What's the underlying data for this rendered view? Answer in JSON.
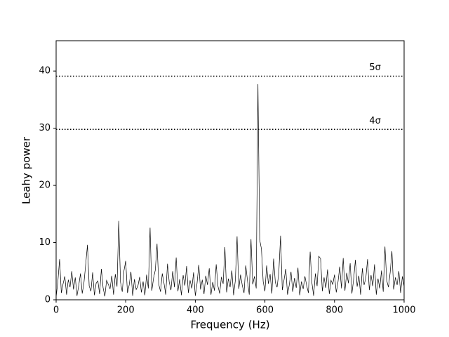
{
  "chart_data": {
    "type": "line",
    "xlabel": "Frequency (Hz)",
    "ylabel": "Leahy power",
    "color": "#000000",
    "xlim": [
      0,
      1000
    ],
    "ylim": [
      0,
      45.3
    ],
    "xticks": [
      0,
      200,
      400,
      600,
      800,
      1000
    ],
    "yticks": [
      0,
      10,
      20,
      30,
      40
    ],
    "thresholds": [
      {
        "value": 39.1,
        "label": "5σ"
      },
      {
        "value": 29.8,
        "label": "4σ"
      }
    ],
    "x": [
      0,
      5,
      10,
      15,
      20,
      25,
      30,
      35,
      40,
      45,
      50,
      55,
      60,
      65,
      70,
      75,
      80,
      85,
      90,
      95,
      100,
      105,
      110,
      115,
      120,
      125,
      130,
      135,
      140,
      145,
      150,
      155,
      160,
      165,
      170,
      175,
      180,
      185,
      190,
      195,
      200,
      205,
      210,
      215,
      220,
      225,
      230,
      235,
      240,
      245,
      250,
      255,
      260,
      265,
      270,
      275,
      280,
      285,
      290,
      295,
      300,
      305,
      310,
      315,
      320,
      325,
      330,
      335,
      340,
      345,
      350,
      355,
      360,
      365,
      370,
      375,
      380,
      385,
      390,
      395,
      400,
      405,
      410,
      415,
      420,
      425,
      430,
      435,
      440,
      445,
      450,
      455,
      460,
      465,
      470,
      475,
      480,
      485,
      490,
      495,
      500,
      505,
      510,
      515,
      520,
      525,
      530,
      535,
      540,
      545,
      550,
      555,
      560,
      565,
      570,
      575,
      580,
      585,
      590,
      595,
      600,
      605,
      610,
      615,
      620,
      625,
      630,
      635,
      640,
      645,
      650,
      655,
      660,
      665,
      670,
      675,
      680,
      685,
      690,
      695,
      700,
      705,
      710,
      715,
      720,
      725,
      730,
      735,
      740,
      745,
      750,
      755,
      760,
      765,
      770,
      775,
      780,
      785,
      790,
      795,
      800,
      805,
      810,
      815,
      820,
      825,
      830,
      835,
      840,
      845,
      850,
      855,
      860,
      865,
      870,
      875,
      880,
      885,
      890,
      895,
      900,
      905,
      910,
      915,
      920,
      925,
      930,
      935,
      940,
      945,
      950,
      955,
      960,
      965,
      970,
      975,
      980,
      985,
      990,
      995,
      1000
    ],
    "values": [
      0.5,
      3.2,
      7.1,
      1.2,
      2.8,
      4.1,
      0.9,
      3.5,
      2.2,
      5.0,
      1.8,
      3.9,
      0.7,
      2.5,
      4.6,
      1.1,
      3.0,
      6.2,
      9.6,
      2.4,
      1.5,
      4.8,
      0.8,
      2.9,
      3.3,
      1.0,
      5.4,
      2.1,
      0.6,
      3.4,
      2.7,
      1.9,
      4.2,
      0.9,
      4.5,
      2.3,
      13.8,
      3.1,
      1.4,
      5.1,
      6.8,
      1.2,
      2.6,
      4.9,
      0.7,
      3.6,
      1.8,
      2.4,
      4.0,
      1.3,
      3.2,
      0.8,
      4.4,
      2.0,
      12.6,
      1.6,
      3.8,
      5.2,
      9.8,
      2.7,
      1.4,
      4.6,
      2.9,
      0.9,
      6.3,
      3.1,
      1.7,
      5.0,
      2.2,
      7.4,
      1.5,
      3.6,
      0.8,
      4.3,
      2.5,
      5.9,
      1.2,
      3.4,
      2.0,
      4.8,
      0.7,
      2.9,
      6.1,
      1.8,
      3.5,
      1.0,
      4.2,
      2.6,
      5.5,
      0.9,
      3.1,
      1.6,
      6.2,
      2.4,
      1.1,
      4.0,
      2.8,
      9.2,
      1.3,
      3.7,
      2.2,
      5.1,
      0.8,
      3.4,
      11.1,
      1.9,
      4.4,
      2.5,
      1.2,
      6.0,
      3.3,
      0.9,
      10.6,
      2.7,
      4.1,
      2.0,
      37.7,
      10.5,
      8.9,
      3.2,
      1.5,
      6.0,
      2.8,
      4.5,
      1.1,
      7.2,
      3.0,
      2.2,
      4.8,
      11.2,
      1.7,
      3.5,
      5.4,
      0.9,
      2.6,
      4.9,
      1.4,
      3.8,
      2.1,
      5.6,
      0.8,
      3.2,
      1.9,
      4.1,
      2.5,
      1.2,
      8.4,
      3.0,
      0.7,
      4.6,
      2.4,
      7.6,
      7.2,
      1.5,
      3.9,
      2.1,
      5.3,
      1.0,
      3.4,
      2.7,
      4.4,
      1.3,
      3.1,
      5.8,
      2.0,
      7.3,
      1.6,
      4.7,
      2.9,
      6.4,
      1.1,
      3.6,
      7.0,
      2.3,
      4.2,
      0.9,
      5.5,
      2.6,
      3.8,
      7.1,
      1.7,
      4.3,
      2.4,
      6.2,
      0.9,
      3.7,
      2.0,
      5.1,
      1.4,
      9.3,
      3.4,
      2.2,
      4.8,
      8.5,
      1.8,
      3.9,
      2.6,
      5.0,
      1.2,
      4.1,
      2.3
    ]
  }
}
